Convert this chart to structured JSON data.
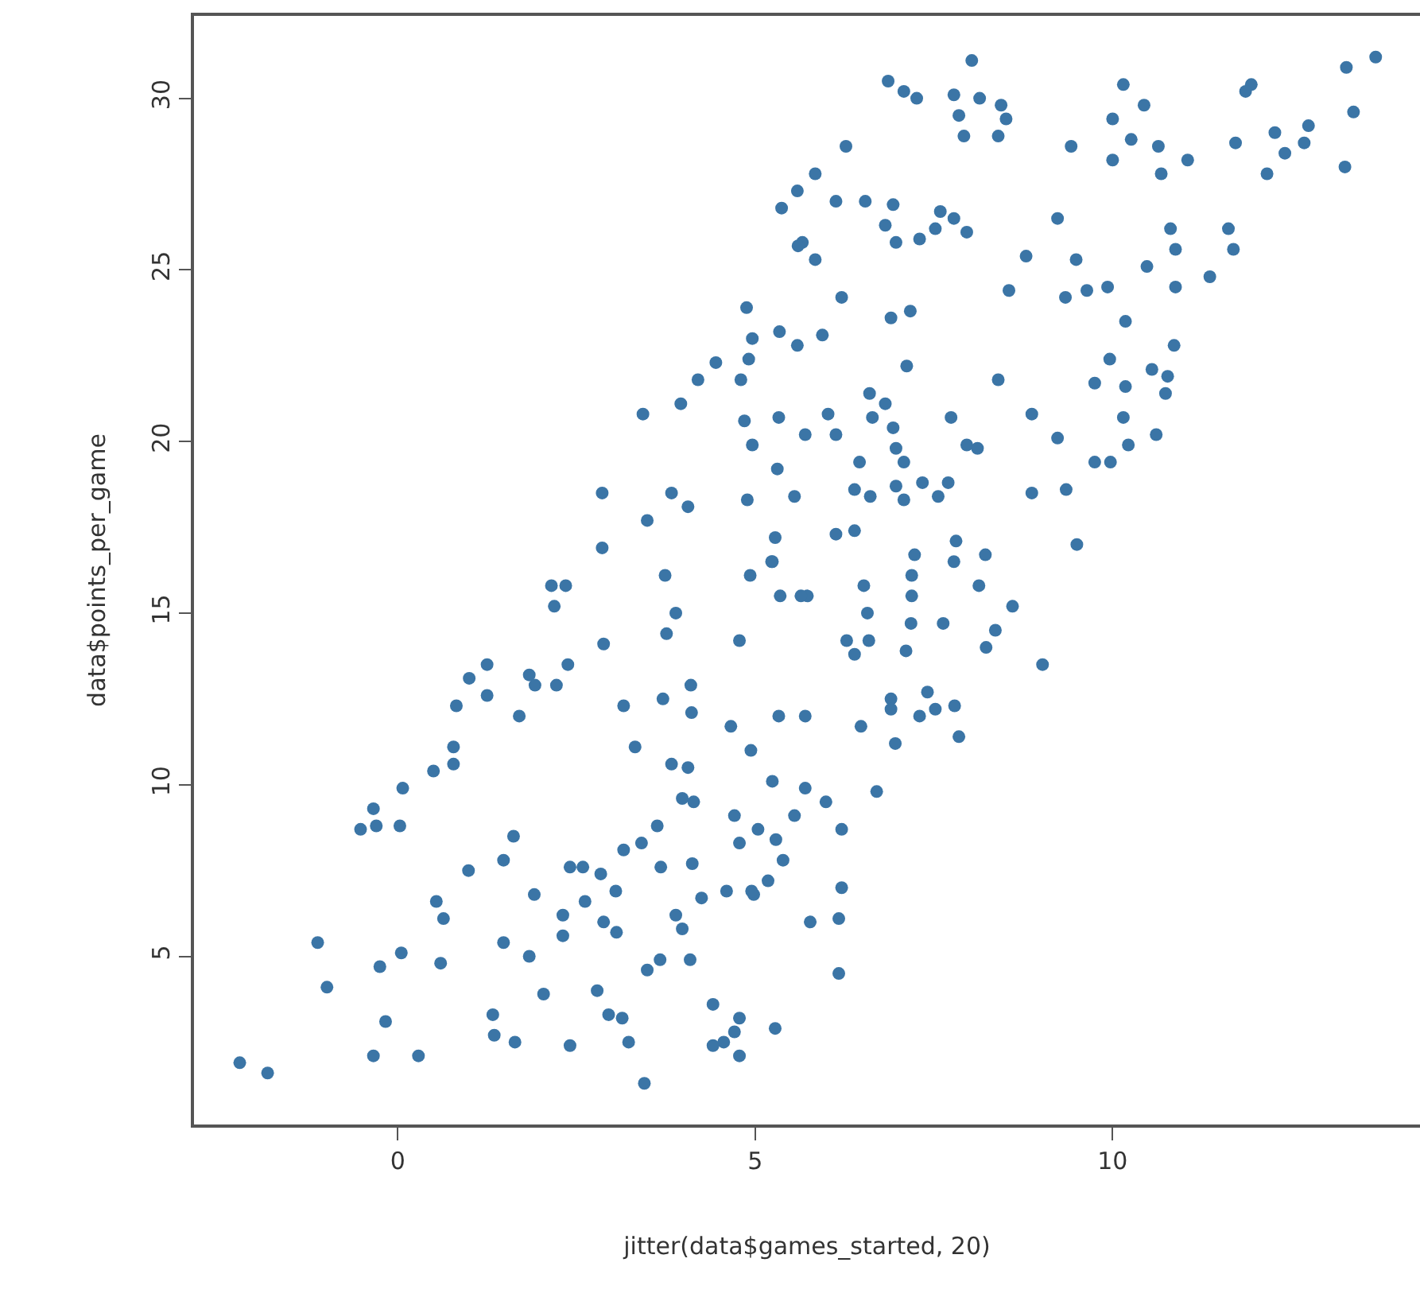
{
  "chart_data": {
    "type": "scatter",
    "xlabel": "jitter(data$games_started, 20)",
    "ylabel": "data$points_per_game",
    "marker": "circle",
    "xlim": [
      -2.85,
      14.3
    ],
    "ylim": [
      0.1,
      32.4
    ],
    "xticks": [
      0,
      5,
      10
    ],
    "yticks": [
      5,
      10,
      15,
      20,
      25,
      30
    ],
    "series": [
      {
        "color": "#3b75a6",
        "x": [
          8.03,
          6.86,
          7.08,
          7.26,
          7.78,
          8.14,
          8.44,
          7.85,
          8.51,
          7.92,
          8.4,
          6.27,
          9.42,
          10.15,
          10.44,
          10.0,
          10.26,
          10.64,
          10.0,
          10.68,
          11.05,
          11.94,
          11.86,
          11.72,
          12.27,
          12.41,
          12.16,
          12.74,
          12.68,
          13.27,
          13.68,
          13.37,
          13.25,
          5.84,
          5.59,
          6.13,
          6.54,
          6.93,
          7.59,
          7.78,
          7.96,
          6.82,
          6.97,
          7.3,
          7.52,
          5.66,
          5.84,
          9.23,
          10.81,
          10.88,
          11.62,
          11.69,
          8.79,
          9.49,
          10.48,
          11.36,
          10.88,
          8.55,
          9.34,
          9.64,
          9.93,
          10.18,
          6.21,
          6.9,
          7.17,
          5.59,
          5.94,
          7.12,
          8.4,
          9.96,
          9.75,
          10.18,
          10.55,
          10.77,
          10.86,
          10.74,
          8.87,
          10.15,
          10.22,
          10.61,
          9.75,
          9.97,
          9.23,
          6.6,
          6.82,
          6.64,
          6.93,
          5.7,
          6.02,
          6.13,
          6.97,
          7.08,
          6.46,
          7.74,
          7.96,
          8.11,
          6.39,
          6.61,
          6.97,
          7.08,
          7.34,
          7.56,
          7.7,
          8.87,
          9.35,
          5.55,
          6.13,
          6.39,
          7.23,
          7.81,
          7.78,
          8.22,
          9.5,
          5.73,
          6.52,
          6.57,
          7.19,
          7.19,
          7.18,
          7.63,
          8.13,
          8.6,
          8.36,
          8.23,
          9.02,
          6.28,
          6.39,
          6.59,
          7.11,
          5.7,
          6.48,
          6.9,
          6.9,
          7.41,
          7.3,
          7.52,
          7.79,
          7.85,
          6.96,
          5.7,
          5.99,
          5.55,
          6.21,
          6.7,
          6.21,
          5.77,
          6.17,
          6.17,
          5.37,
          5.6,
          4.88,
          4.96,
          5.34,
          4.45,
          4.91,
          4.2,
          4.8,
          3.96,
          3.43,
          4.85,
          5.33,
          4.96,
          5.31,
          4.89,
          2.86,
          3.83,
          4.06,
          3.49,
          5.28,
          2.86,
          5.23,
          -2.21,
          -1.82,
          -1.12,
          -0.99,
          -0.52,
          -0.34,
          -0.3,
          0.03,
          0.07,
          -0.25,
          0.05,
          -0.17,
          -0.34,
          0.29,
          0.6,
          0.5,
          0.78,
          0.78,
          0.82,
          1.0,
          1.25,
          1.25,
          1.84,
          1.92,
          2.22,
          2.38,
          1.7,
          2.15,
          2.35,
          2.19,
          2.88,
          3.74,
          3.89,
          3.76,
          4.78,
          4.93,
          5.24,
          5.35,
          3.16,
          3.71,
          4.1,
          4.11,
          3.32,
          4.66,
          4.94,
          5.33,
          5.24,
          3.83,
          4.06,
          3.98,
          4.14,
          4.71,
          5.04,
          5.29,
          4.78,
          5.39,
          5.18,
          4.98,
          3.63,
          3.41,
          3.16,
          4.12,
          3.68,
          4.25,
          4.6,
          3.89,
          3.98,
          4.09,
          3.67,
          3.49,
          4.41,
          4.78,
          4.71,
          4.56,
          4.41,
          4.78,
          5.28,
          3.45,
          3.23,
          2.95,
          3.14,
          2.79,
          2.41,
          2.04,
          1.64,
          1.35,
          1.33,
          1.84,
          1.48,
          2.31,
          2.31,
          2.62,
          2.88,
          3.06,
          3.05,
          2.84,
          2.59,
          2.41,
          1.91,
          1.48,
          0.99,
          1.62,
          0.54,
          0.64,
          4.95,
          5.64
        ],
        "values": [
          31.1,
          30.5,
          30.2,
          30.0,
          30.1,
          30.0,
          29.8,
          29.5,
          29.4,
          28.9,
          28.9,
          28.6,
          28.6,
          30.4,
          29.8,
          29.4,
          28.8,
          28.6,
          28.2,
          27.8,
          28.2,
          30.4,
          30.2,
          28.7,
          29.0,
          28.4,
          27.8,
          29.2,
          28.7,
          30.9,
          31.2,
          29.6,
          28.0,
          27.8,
          27.3,
          27.0,
          27.0,
          26.9,
          26.7,
          26.5,
          26.1,
          26.3,
          25.8,
          25.9,
          26.2,
          25.8,
          25.3,
          26.5,
          26.2,
          25.6,
          26.2,
          25.6,
          25.4,
          25.3,
          25.1,
          24.8,
          24.5,
          24.4,
          24.2,
          24.4,
          24.5,
          23.5,
          24.2,
          23.6,
          23.8,
          22.8,
          23.1,
          22.2,
          21.8,
          22.4,
          21.7,
          21.6,
          22.1,
          21.9,
          22.8,
          21.4,
          20.8,
          20.7,
          19.9,
          20.2,
          19.4,
          19.4,
          20.1,
          21.4,
          21.1,
          20.7,
          20.4,
          20.2,
          20.8,
          20.2,
          19.8,
          19.4,
          19.4,
          20.7,
          19.9,
          19.8,
          18.6,
          18.4,
          18.7,
          18.3,
          18.8,
          18.4,
          18.8,
          18.5,
          18.6,
          18.4,
          17.3,
          17.4,
          16.7,
          17.1,
          16.5,
          16.7,
          17.0,
          15.5,
          15.8,
          15.0,
          16.1,
          15.5,
          14.7,
          14.7,
          15.8,
          15.2,
          14.5,
          14.0,
          13.5,
          14.2,
          13.8,
          14.2,
          13.9,
          12.0,
          11.7,
          12.5,
          12.2,
          12.7,
          12.0,
          12.2,
          12.3,
          11.4,
          11.2,
          9.9,
          9.5,
          9.1,
          8.7,
          9.8,
          7.0,
          6.0,
          6.1,
          4.5,
          26.8,
          25.7,
          23.9,
          23.0,
          23.2,
          22.3,
          22.4,
          21.8,
          21.8,
          21.1,
          20.8,
          20.6,
          20.7,
          19.9,
          19.2,
          18.3,
          18.5,
          18.5,
          18.1,
          17.7,
          17.2,
          16.9,
          16.5,
          1.9,
          1.6,
          5.4,
          4.1,
          8.7,
          9.3,
          8.8,
          8.8,
          9.9,
          4.7,
          5.1,
          3.1,
          2.1,
          2.1,
          4.8,
          10.4,
          10.6,
          11.1,
          12.3,
          13.1,
          13.5,
          12.6,
          13.2,
          12.9,
          12.9,
          13.5,
          12.0,
          15.8,
          15.8,
          15.2,
          14.1,
          16.1,
          15.0,
          14.4,
          14.2,
          16.1,
          16.5,
          15.5,
          12.3,
          12.5,
          12.9,
          12.1,
          11.1,
          11.7,
          11.0,
          12.0,
          10.1,
          10.6,
          10.5,
          9.6,
          9.5,
          9.1,
          8.7,
          8.4,
          8.3,
          7.8,
          7.2,
          6.8,
          8.8,
          8.3,
          8.1,
          7.7,
          7.6,
          6.7,
          6.9,
          6.2,
          5.8,
          4.9,
          4.9,
          4.6,
          3.6,
          3.2,
          2.8,
          2.5,
          2.4,
          2.1,
          2.9,
          1.3,
          2.5,
          3.3,
          3.2,
          4.0,
          2.4,
          3.9,
          2.5,
          2.7,
          3.3,
          5.0,
          5.4,
          5.6,
          6.2,
          6.6,
          6.0,
          5.7,
          6.9,
          7.4,
          7.6,
          7.6,
          6.8,
          7.8,
          7.5,
          8.5,
          6.6,
          6.1,
          6.9,
          15.5
        ]
      }
    ]
  }
}
